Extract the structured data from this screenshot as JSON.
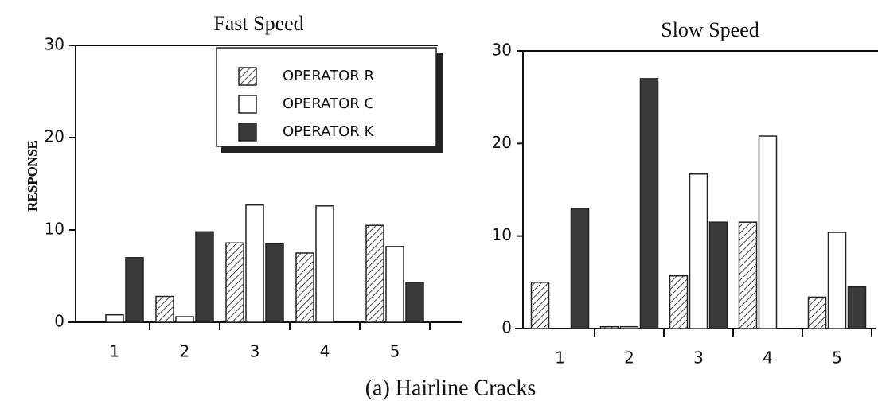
{
  "chart_data": [
    {
      "type": "bar",
      "title": "Fast Speed",
      "y_label": "RESPONSE",
      "legend": "top-right",
      "categories": [
        "1",
        "2",
        "3",
        "4",
        "5"
      ],
      "series": [
        {
          "name": "OPERATOR R",
          "color": "#555555",
          "hatch": true,
          "values": [
            0,
            2.8,
            8.6,
            7.5,
            10.5
          ]
        },
        {
          "name": "OPERATOR C",
          "color": "#ffffff",
          "hatch": false,
          "values": [
            0.8,
            0.6,
            12.7,
            12.6,
            8.2
          ]
        },
        {
          "name": "OPERATOR K",
          "color": "#3a3a3a",
          "hatch": false,
          "values": [
            7,
            9.8,
            8.5,
            0,
            4.3
          ]
        }
      ],
      "ylim": [
        0,
        30
      ],
      "yticks": [
        0,
        10,
        20,
        30
      ]
    },
    {
      "type": "bar",
      "title": "Slow Speed",
      "categories": [
        "1",
        "2",
        "3",
        "4",
        "5"
      ],
      "series": [
        {
          "color": "#555555",
          "hatch": true,
          "values": [
            5,
            0.2,
            5.7,
            11.5,
            3.4
          ]
        },
        {
          "color": "#ffffff",
          "hatch": false,
          "values": [
            0,
            0.2,
            16.7,
            20.8,
            10.4
          ]
        },
        {
          "color": "#3a3a3a",
          "hatch": false,
          "values": [
            13,
            27,
            11.5,
            0,
            4.5
          ]
        }
      ],
      "ylim": [
        0,
        30
      ],
      "yticks": [
        0,
        10,
        20,
        30
      ]
    }
  ],
  "caption": "(a) Hairline Cracks"
}
